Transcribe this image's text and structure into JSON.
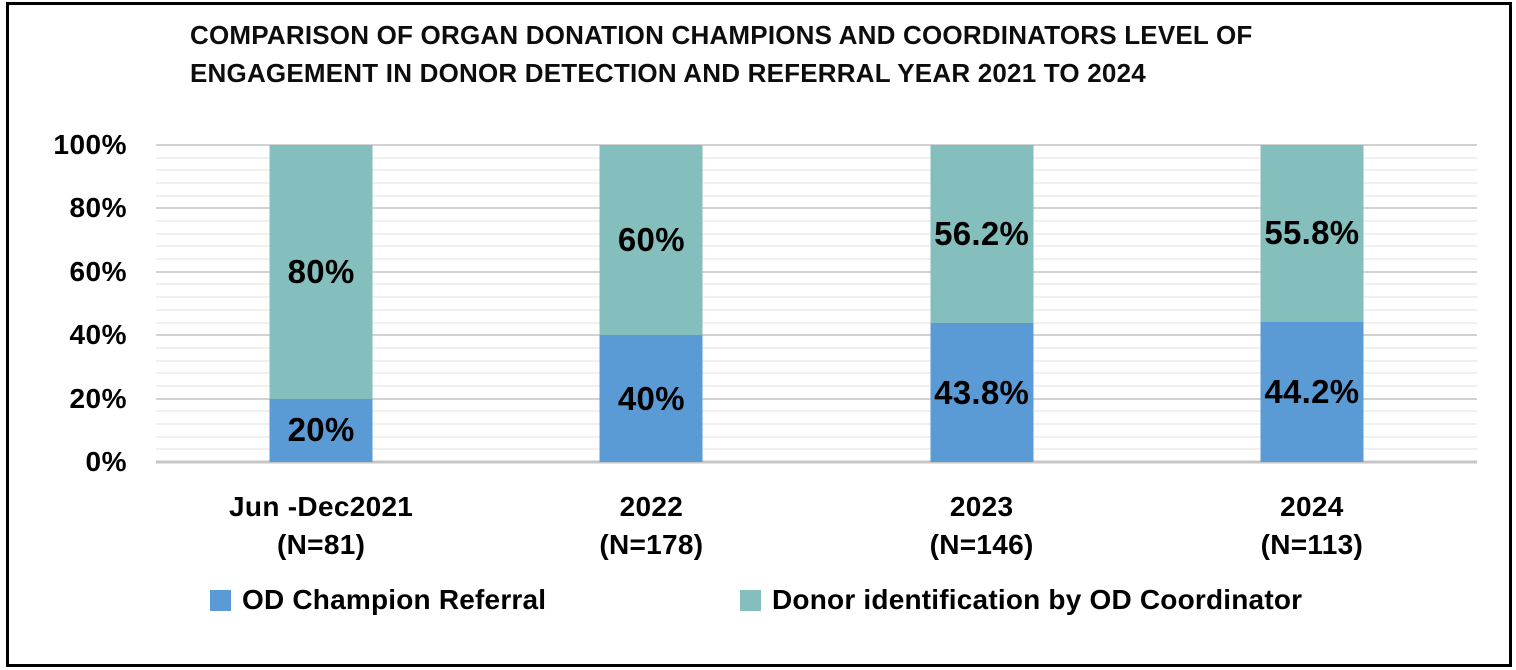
{
  "window": {
    "background": "#ffffff",
    "border_color": "#000000"
  },
  "title": {
    "line1": "COMPARISON OF ORGAN DONATION CHAMPIONS AND COORDINATORS LEVEL OF",
    "line2": "ENGAGEMENT IN DONOR DETECTION AND REFERRAL YEAR 2021 TO 2024"
  },
  "chart_data": {
    "type": "bar",
    "variant": "stacked-100-percent",
    "title": "COMPARISON OF ORGAN DONATION CHAMPIONS AND COORDINATORS LEVEL OF ENGAGEMENT IN DONOR DETECTION AND REFERRAL YEAR 2021 TO 2024",
    "categories": [
      "Jun -Dec2021 (N=81)",
      "2022 (N=178)",
      "2023 (N=146)",
      "2024 (N=113)"
    ],
    "category_lines": [
      [
        "Jun -Dec2021",
        "(N=81)"
      ],
      [
        "2022",
        "(N=178)"
      ],
      [
        "2023",
        "(N=146)"
      ],
      [
        "2024",
        "(N=113)"
      ]
    ],
    "series": [
      {
        "name": "OD Champion Referral",
        "color": "#5B9BD5",
        "values": [
          20,
          40,
          43.8,
          44.2
        ],
        "labels": [
          "20%",
          "40%",
          "43.8%",
          "44.2%"
        ]
      },
      {
        "name": "Donor identification by OD Coordinator",
        "color": "#84BFBD",
        "values": [
          80,
          60,
          56.2,
          55.8
        ],
        "labels": [
          "80%",
          "60%",
          "56.2%",
          "55.8%"
        ]
      }
    ],
    "y_axis": {
      "min": 0,
      "max": 100,
      "major_step": 20,
      "minor_step": 4,
      "tick_labels": [
        "0%",
        "20%",
        "40%",
        "60%",
        "80%",
        "100%"
      ],
      "unit": "percent"
    },
    "ylim": [
      0,
      100
    ],
    "grid": {
      "show_minor": true,
      "major_color": "#d2d2d2",
      "minor_color": "#f0f0f0",
      "axis_color": "#c6c6c6"
    },
    "legend": {
      "position": "bottom"
    }
  }
}
